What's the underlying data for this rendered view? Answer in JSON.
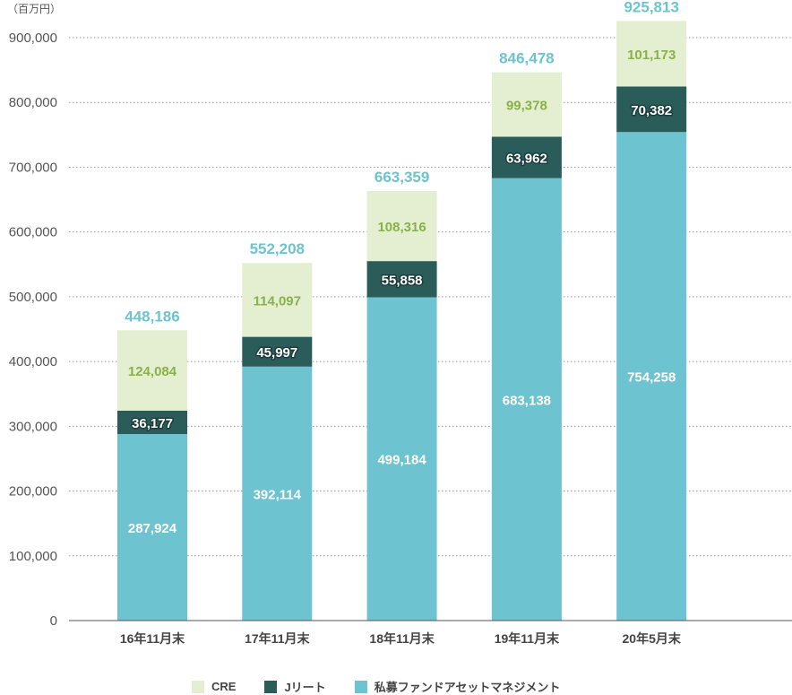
{
  "chart_data": {
    "type": "bar",
    "stacked": true,
    "unit_label": "（百万円）",
    "categories": [
      "16年11月末",
      "17年11月末",
      "18年11月末",
      "19年11月末",
      "20年5月末"
    ],
    "series": [
      {
        "name": "私募ファンドアセットマネジメント",
        "color": "#6ec3d0",
        "label_color": "#ffffff",
        "label_outline": false,
        "values": [
          287924,
          392114,
          499184,
          683138,
          754258
        ]
      },
      {
        "name": "Jリート",
        "color": "#2a5c5a",
        "label_color": "#ffffff",
        "label_outline": true,
        "values": [
          36177,
          45997,
          55858,
          63962,
          70382
        ]
      },
      {
        "name": "CRE",
        "color": "#e3efd0",
        "label_color": "#8ab04a",
        "label_outline": false,
        "values": [
          124084,
          114097,
          108316,
          99378,
          101173
        ]
      }
    ],
    "value_labels": [
      [
        "287,924",
        "392,114",
        "499,184",
        "683,138",
        "754,258"
      ],
      [
        "36,177",
        "45,997",
        "55,858",
        "63,962",
        "70,382"
      ],
      [
        "124,084",
        "114,097",
        "108,316",
        "99,378",
        "101,173"
      ]
    ],
    "totals": [
      448186,
      552208,
      663359,
      846478,
      925813
    ],
    "total_labels": [
      "448,186",
      "552,208",
      "663,359",
      "846,478",
      "925,813"
    ],
    "total_color": "#6ec3d0",
    "ylim": [
      0,
      900000
    ],
    "yticks": [
      0,
      100000,
      200000,
      300000,
      400000,
      500000,
      600000,
      700000,
      800000,
      900000
    ],
    "ytick_labels": [
      "0",
      "100,000",
      "200,000",
      "300,000",
      "400,000",
      "500,000",
      "600,000",
      "700,000",
      "800,000",
      "900,000"
    ],
    "grid": "horizontal dotted",
    "legend_position": "bottom",
    "legend_order": [
      "CRE",
      "Jリート",
      "私募ファンドアセットマネジメント"
    ],
    "legend_colors": [
      "#e3efd0",
      "#2a5c5a",
      "#6ec3d0"
    ]
  }
}
